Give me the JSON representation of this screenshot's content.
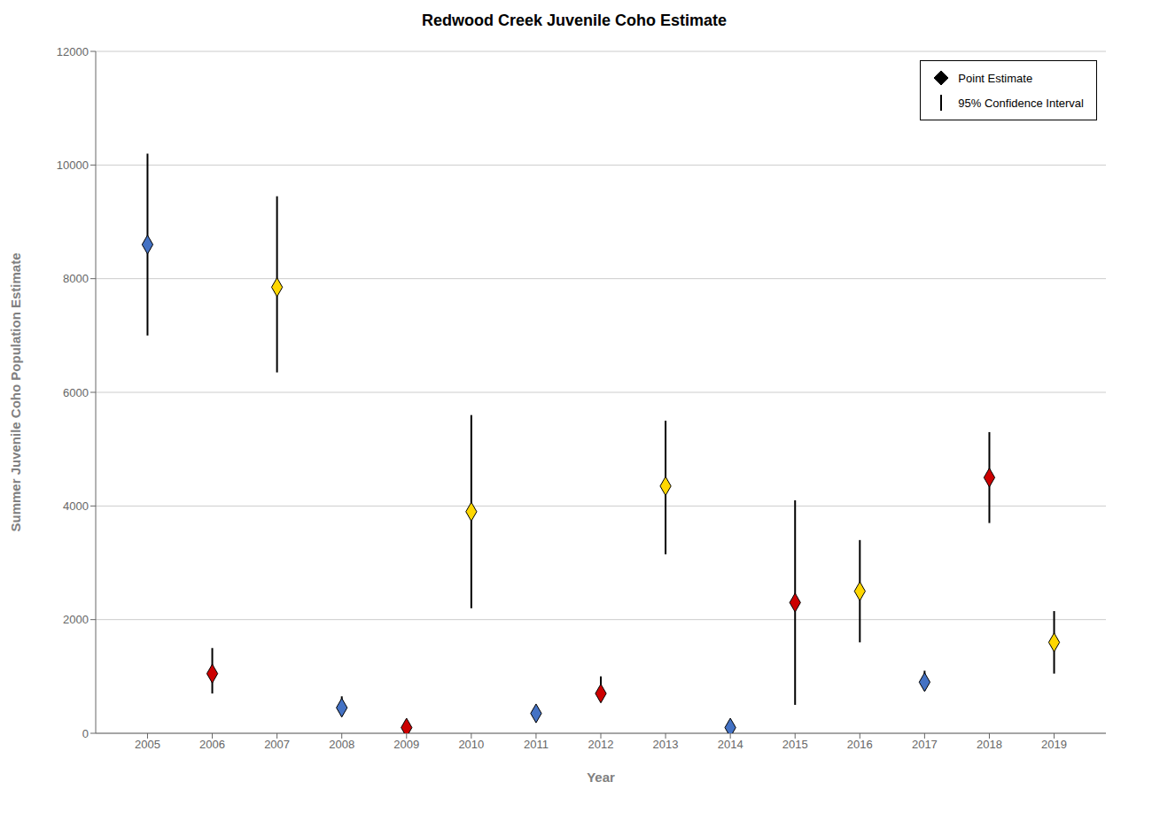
{
  "chart_data": {
    "type": "scatter",
    "title": "Redwood Creek Juvenile Coho Estimate",
    "xlabel": "Year",
    "ylabel": "Summer Juvenile Coho Population Estimate",
    "x": [
      2005,
      2006,
      2007,
      2008,
      2009,
      2010,
      2011,
      2012,
      2013,
      2014,
      2015,
      2016,
      2017,
      2018,
      2019
    ],
    "series": [
      {
        "name": "Point Estimate",
        "marker": "diamond",
        "values": [
          8600,
          1050,
          7850,
          450,
          100,
          3900,
          350,
          700,
          4350,
          100,
          2300,
          2500,
          900,
          4500,
          1600
        ],
        "colors": [
          "#4472C4",
          "#CC0000",
          "#FFD700",
          "#4472C4",
          "#CC0000",
          "#FFD700",
          "#4472C4",
          "#CC0000",
          "#FFD700",
          "#4472C4",
          "#CC0000",
          "#FFD700",
          "#4472C4",
          "#CC0000",
          "#FFD700"
        ],
        "error_bars": {
          "name": "95% Confidence Interval",
          "color": "#000000",
          "lower": [
            7000,
            700,
            6350,
            300,
            50,
            2200,
            250,
            550,
            3150,
            50,
            500,
            1600,
            750,
            3700,
            1050
          ],
          "upper": [
            10200,
            1500,
            9450,
            650,
            200,
            5600,
            450,
            1000,
            5500,
            200,
            4100,
            3400,
            1100,
            5300,
            2150
          ]
        }
      }
    ],
    "xlim": [
      2004.2,
      2019.8
    ],
    "xticks": [
      2005,
      2006,
      2007,
      2008,
      2009,
      2010,
      2011,
      2012,
      2013,
      2014,
      2015,
      2016,
      2017,
      2018,
      2019
    ],
    "ylim": [
      0,
      12000
    ],
    "yticks": [
      0,
      2000,
      4000,
      6000,
      8000,
      10000,
      12000
    ],
    "grid": true,
    "legend": "upper right"
  }
}
